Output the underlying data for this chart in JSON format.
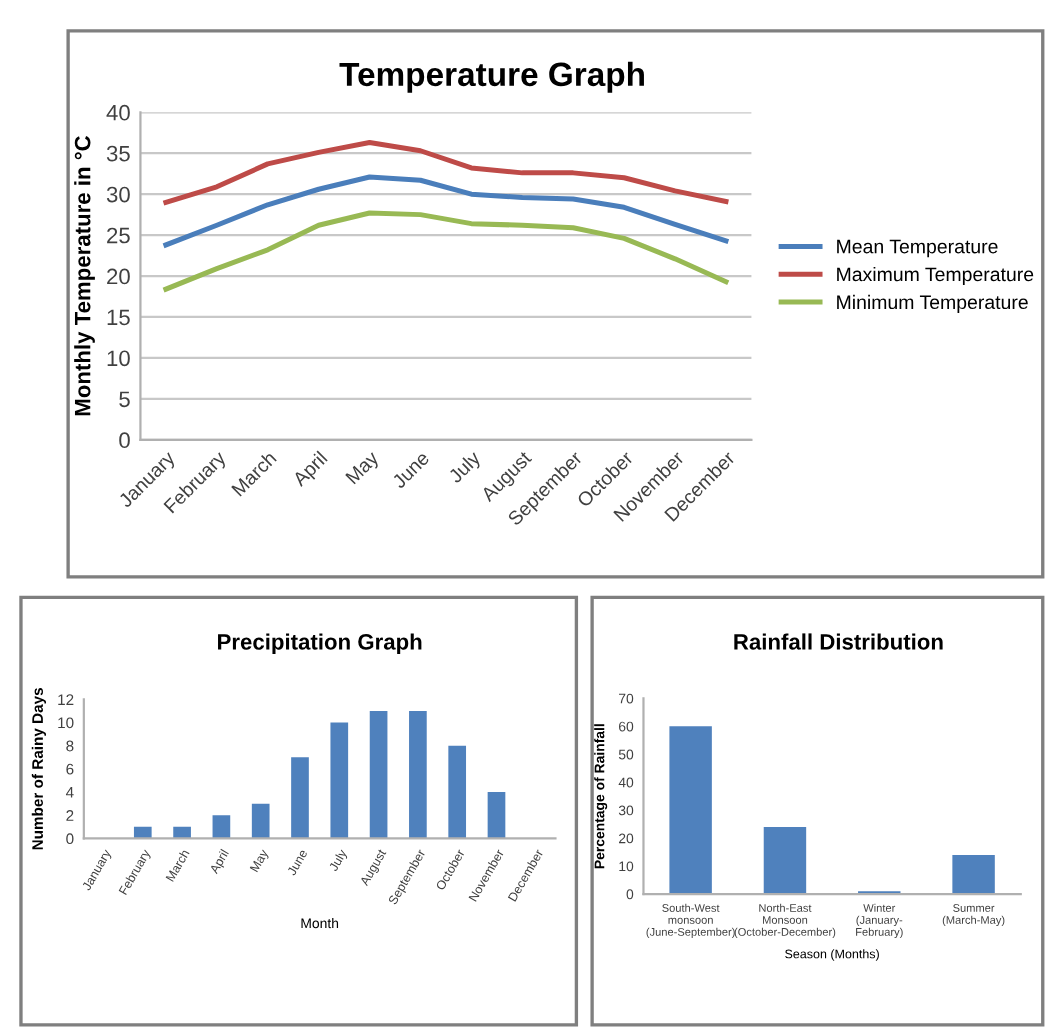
{
  "chart_data": [
    {
      "type": "line",
      "title": "Temperature Graph",
      "ylabel": "Monthly Temperature in °C",
      "categories": [
        "January",
        "February",
        "March",
        "April",
        "May",
        "June",
        "July",
        "August",
        "September",
        "October",
        "November",
        "December"
      ],
      "series": [
        {
          "name": "Mean Temperature",
          "color": "#4a7ebb",
          "values": [
            23.8,
            26.2,
            28.7,
            30.6,
            32.1,
            31.7,
            30.0,
            29.6,
            29.4,
            28.4,
            26.3,
            24.3
          ]
        },
        {
          "name": "Maximum Temperature",
          "color": "#be4b48",
          "values": [
            29.0,
            30.9,
            33.7,
            35.1,
            36.3,
            35.3,
            33.2,
            32.6,
            32.6,
            32.0,
            30.4,
            29.1
          ]
        },
        {
          "name": "Minimum Temperature",
          "color": "#98b954",
          "values": [
            18.4,
            20.9,
            23.2,
            26.2,
            27.7,
            27.5,
            26.4,
            26.2,
            25.9,
            24.6,
            22.1,
            19.3
          ]
        }
      ],
      "ylim": [
        0,
        40
      ],
      "yticks": [
        0,
        5,
        10,
        15,
        20,
        25,
        30,
        35,
        40
      ],
      "grid": "y",
      "legend": "right",
      "marker": "none",
      "line_style": "solid"
    },
    {
      "type": "bar",
      "title": "Precipitation Graph",
      "xlabel": "Month",
      "ylabel": "Number of Rainy Days",
      "categories": [
        "January",
        "February",
        "March",
        "April",
        "May",
        "June",
        "July",
        "August",
        "September",
        "October",
        "November",
        "December"
      ],
      "values": [
        0,
        1,
        1,
        2,
        3,
        7,
        10,
        11,
        11,
        8,
        4,
        0
      ],
      "color": "#4f81bd",
      "ylim": [
        0,
        12
      ],
      "yticks": [
        0,
        2,
        4,
        6,
        8,
        10,
        12
      ]
    },
    {
      "type": "bar",
      "title": "Rainfall Distribution",
      "xlabel": "Season (Months)",
      "ylabel": "Percentage of Rainfall",
      "categories": [
        "South-West monsoon\n(June-September)",
        "North-East Monsoon\n(October-December)",
        "Winter (January-\nFebruary)",
        "Summer (March-May)"
      ],
      "values": [
        60,
        24,
        1,
        14
      ],
      "color": "#4f81bd",
      "ylim": [
        0,
        70
      ],
      "yticks": [
        0,
        10,
        20,
        30,
        40,
        50,
        60,
        70
      ]
    }
  ]
}
